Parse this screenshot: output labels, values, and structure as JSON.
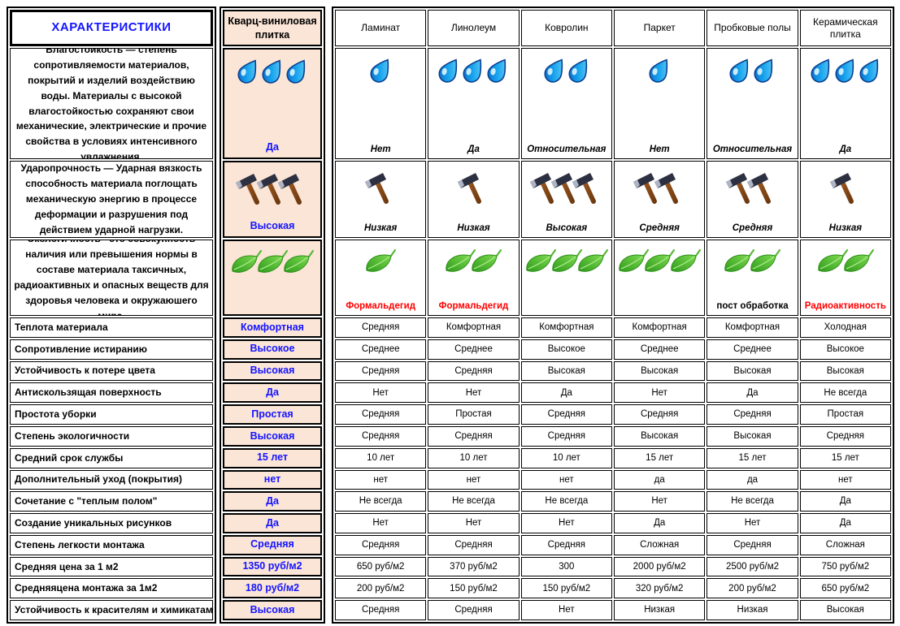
{
  "left_header": "ХАРАКТЕРИСТИКИ",
  "characteristic_descriptions": [
    "Влагосто́йкость — степень сопротивляемости материалов, покрытий и изделий воздействию воды. Материалы с высокой влагостойкостью сохраняют свои механические, электрические и прочие свойства в условиях интенсивного увлажнения.",
    "Ударопрочность — Ударная вязкость способность материала поглощать механическую энергию в процессе деформации и разрушения под действием ударной нагрузки.",
    "Экологичность - это совокупность наличия или превышения нормы в составе материала таксичных, радиоактивных и опасных веществ для здоровья человека и окружаюшего мира."
  ],
  "colors": {
    "accent_blue": "#1414ff",
    "highlight_bg": "#fbe5d6",
    "warning_red": "#ff0000",
    "border_black": "#000000"
  },
  "chart_data": {
    "type": "table",
    "title": "ХАРАКТЕРИСТИКИ",
    "legend_position": "none",
    "columns": [
      "Кварц-виниловая плитка",
      "Ламинат",
      "Линолеум",
      "Ковролин",
      "Паркет",
      "Пробковые полы",
      "Керамическая плитка"
    ],
    "icon_rows": [
      {
        "characteristic": "Влагостойкость",
        "icon": "water-drop-icon",
        "counts": [
          3,
          1,
          3,
          2,
          1,
          2,
          3
        ],
        "values": [
          "Да",
          "Нет",
          "Да",
          "Относительная",
          "Нет",
          "Относительная",
          "Да"
        ],
        "value_style": "italic",
        "value_colors": [
          "#1414ff",
          "#000000",
          "#000000",
          "#000000",
          "#000000",
          "#000000",
          "#000000"
        ]
      },
      {
        "characteristic": "Ударопрочность",
        "icon": "hammer-icon",
        "counts": [
          3,
          1,
          1,
          3,
          2,
          2,
          1
        ],
        "values": [
          "Высокая",
          "Низкая",
          "Низкая",
          "Высокая",
          "Средняя",
          "Средняя",
          "Низкая"
        ],
        "value_style": "italic",
        "value_colors": [
          "#1414ff",
          "#000000",
          "#000000",
          "#000000",
          "#000000",
          "#000000",
          "#000000"
        ]
      },
      {
        "characteristic": "Экологичность",
        "icon": "leaf-icon",
        "counts": [
          3,
          1,
          2,
          3,
          3,
          2,
          2
        ],
        "values": [
          "",
          "Формальдегид",
          "Формальдегид",
          "",
          "",
          "пост обработка",
          "Радиоактивность"
        ],
        "value_style": "plain",
        "value_colors": [
          "",
          "#ff0000",
          "#ff0000",
          "",
          "",
          "#000000",
          "#ff0000"
        ]
      }
    ],
    "simple_rows": [
      {
        "label": "Теплота материала",
        "values": [
          "Комфортная",
          "Средняя",
          "Комфортная",
          "Комфортная",
          "Комфортная",
          "Комфортная",
          "Холодная"
        ]
      },
      {
        "label": "Сопротивление истиранию",
        "values": [
          "Высокое",
          "Среднее",
          "Среднее",
          "Высокое",
          "Среднее",
          "Среднее",
          "Высокое"
        ]
      },
      {
        "label": "Устойчивость к потере цвета",
        "values": [
          "Высокая",
          "Средняя",
          "Средняя",
          "Высокая",
          "Высокая",
          "Высокая",
          "Высокая"
        ]
      },
      {
        "label": "Антискользящая поверхность",
        "values": [
          "Да",
          "Нет",
          "Нет",
          "Да",
          "Нет",
          "Да",
          "Не всегда"
        ]
      },
      {
        "label": "Простота уборки",
        "values": [
          "Простая",
          "Средняя",
          "Простая",
          "Средняя",
          "Средняя",
          "Средняя",
          "Простая"
        ]
      },
      {
        "label": "Степень экологичности",
        "values": [
          "Высокая",
          "Средняя",
          "Средняя",
          "Средняя",
          "Высокая",
          "Высокая",
          "Средняя"
        ]
      },
      {
        "label": "Средний срок службы",
        "values": [
          "15 лет",
          "10 лет",
          "10 лет",
          "10 лет",
          "15 лет",
          "15 лет",
          "15 лет"
        ]
      },
      {
        "label": "Дополнительный уход (покрытия)",
        "values": [
          "нет",
          "нет",
          "нет",
          "нет",
          "да",
          "да",
          "нет"
        ]
      },
      {
        "label": "Сочетание с \"теплым полом\"",
        "values": [
          "Да",
          "Не всегда",
          "Не всегда",
          "Не всегда",
          "Нет",
          "Не всегда",
          "Да"
        ]
      },
      {
        "label": "Создание уникальных рисунков",
        "values": [
          "Да",
          "Нет",
          "Нет",
          "Нет",
          "Да",
          "Нет",
          "Да"
        ]
      },
      {
        "label": "Степень легкости монтажа",
        "values": [
          "Средняя",
          "Средняя",
          "Средняя",
          "Средняя",
          "Сложная",
          "Средняя",
          "Сложная"
        ]
      },
      {
        "label": "Средняя цена за 1 м2",
        "values": [
          "1350 руб/м2",
          "650 руб/м2",
          "370 руб/м2",
          "300",
          "2000 руб/м2",
          "2500 руб/м2",
          "750 руб/м2"
        ]
      },
      {
        "label": "Средняяцена монтажа за 1м2",
        "values": [
          "180 руб/м2",
          "200 руб/м2",
          "150 руб/м2",
          "150 руб/м2",
          "320 руб/м2",
          "200 руб/м2",
          "650 руб/м2"
        ]
      },
      {
        "label": "Устойчивость к красителям и химикатам",
        "values": [
          "Высокая",
          "Средняя",
          "Средняя",
          "Нет",
          "Низкая",
          "Низкая",
          "Высокая"
        ]
      }
    ]
  }
}
